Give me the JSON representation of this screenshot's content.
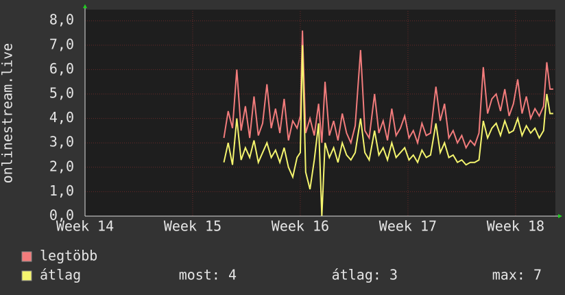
{
  "chart_data": {
    "type": "line",
    "y_label": "onlinestream.live",
    "xlim": [
      14,
      18.37
    ],
    "ylim": [
      0,
      8.4
    ],
    "xticks": [
      {
        "value": 14,
        "label": "Week 14"
      },
      {
        "value": 15,
        "label": "Week 15"
      },
      {
        "value": 16,
        "label": "Week 16"
      },
      {
        "value": 17,
        "label": "Week 17"
      },
      {
        "value": 18,
        "label": "Week 18"
      }
    ],
    "yticks": [
      {
        "value": 0,
        "label": "0,0"
      },
      {
        "value": 1,
        "label": "1,0"
      },
      {
        "value": 2,
        "label": "2,0"
      },
      {
        "value": 3,
        "label": "3,0"
      },
      {
        "value": 4,
        "label": "4,0"
      },
      {
        "value": 5,
        "label": "5,0"
      },
      {
        "value": 6,
        "label": "6,0"
      },
      {
        "value": 7,
        "label": "7,0"
      },
      {
        "value": 8,
        "label": "8,0"
      }
    ],
    "grid": true,
    "x": [
      15.29,
      15.33,
      15.37,
      15.41,
      15.45,
      15.49,
      15.53,
      15.57,
      15.61,
      15.65,
      15.69,
      15.73,
      15.77,
      15.81,
      15.85,
      15.89,
      15.93,
      15.97,
      16.0,
      16.02,
      16.05,
      16.09,
      16.13,
      16.17,
      16.2,
      16.23,
      16.27,
      16.31,
      16.35,
      16.39,
      16.43,
      16.47,
      16.51,
      16.56,
      16.6,
      16.64,
      16.69,
      16.73,
      16.77,
      16.81,
      16.85,
      16.89,
      16.93,
      16.97,
      17.01,
      17.05,
      17.09,
      17.13,
      17.17,
      17.21,
      17.26,
      17.3,
      17.34,
      17.38,
      17.42,
      17.46,
      17.5,
      17.54,
      17.58,
      17.62,
      17.66,
      17.7,
      17.74,
      17.78,
      17.82,
      17.86,
      17.9,
      17.94,
      17.98,
      18.02,
      18.06,
      18.1,
      18.14,
      18.18,
      18.22,
      18.26,
      18.29,
      18.32,
      18.35
    ],
    "series": [
      {
        "name": "legtöbb",
        "color": "#f27c7c",
        "values": [
          3.2,
          4.3,
          3.6,
          6.0,
          3.5,
          4.5,
          3.2,
          4.9,
          3.3,
          3.8,
          5.4,
          3.6,
          4.4,
          3.4,
          4.8,
          3.1,
          3.9,
          3.6,
          4.1,
          7.6,
          3.4,
          4.0,
          3.3,
          4.6,
          3.0,
          5.5,
          3.3,
          3.9,
          3.1,
          4.2,
          3.4,
          3.0,
          3.7,
          6.8,
          3.5,
          3.2,
          5.0,
          3.4,
          3.9,
          3.1,
          4.4,
          3.3,
          3.6,
          4.1,
          3.2,
          3.5,
          3.0,
          3.8,
          3.3,
          3.4,
          5.3,
          3.9,
          4.6,
          3.2,
          3.5,
          3.0,
          3.3,
          2.8,
          3.1,
          2.9,
          3.4,
          6.1,
          4.2,
          4.8,
          5.0,
          4.3,
          5.2,
          4.1,
          4.6,
          5.6,
          4.2,
          4.9,
          4.0,
          4.4,
          4.1,
          4.5,
          6.3,
          5.2,
          5.2
        ]
      },
      {
        "name": "átlag",
        "color": "#f5f56e",
        "values": [
          2.2,
          3.0,
          2.1,
          4.0,
          2.3,
          2.8,
          2.4,
          3.1,
          2.2,
          2.6,
          3.0,
          2.4,
          2.7,
          2.2,
          2.8,
          2.0,
          1.6,
          2.4,
          2.6,
          7.0,
          1.8,
          1.1,
          2.3,
          3.8,
          0.0,
          3.0,
          2.4,
          2.8,
          2.2,
          3.0,
          2.5,
          2.3,
          2.6,
          4.0,
          2.6,
          2.3,
          3.5,
          2.5,
          2.8,
          2.3,
          3.0,
          2.4,
          2.6,
          2.8,
          2.3,
          2.5,
          2.2,
          2.7,
          2.4,
          2.5,
          3.8,
          2.6,
          3.0,
          2.4,
          2.5,
          2.2,
          2.3,
          2.1,
          2.2,
          2.2,
          2.3,
          3.9,
          3.2,
          3.6,
          3.8,
          3.3,
          3.9,
          3.4,
          3.5,
          4.0,
          3.3,
          3.7,
          3.4,
          3.6,
          3.2,
          3.5,
          5.0,
          4.2,
          4.2
        ]
      }
    ],
    "stats": [
      "most: 4",
      "átlag: 3",
      "max: 7"
    ]
  }
}
